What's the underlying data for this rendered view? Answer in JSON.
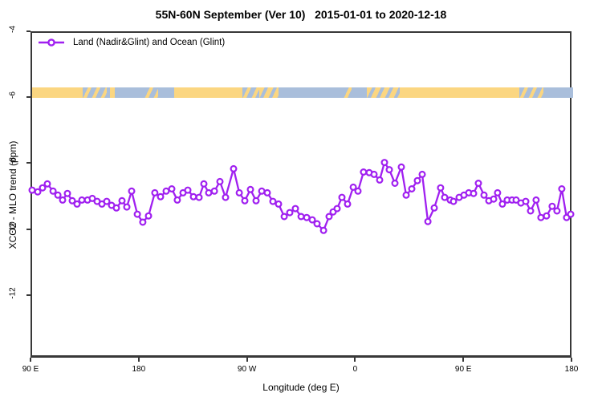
{
  "chart_data": {
    "type": "line",
    "title": "55N-60N September (Ver 10)   2015-01-01 to 2020-12-18",
    "xlabel": "Longitude (deg E)",
    "ylabel": "XCO2 - MLO trend (ppm)",
    "xlim": [
      90,
      540
    ],
    "ylim": [
      -13.9,
      -4.0
    ],
    "grid": false,
    "axis_color": "#383838",
    "x_ticks": [
      {
        "pos": 90,
        "label": "90 E"
      },
      {
        "pos": 180,
        "label": "180"
      },
      {
        "pos": 270,
        "label": "90 W"
      },
      {
        "pos": 360,
        "label": "0"
      },
      {
        "pos": 450,
        "label": "90 E"
      },
      {
        "pos": 540,
        "label": "180"
      }
    ],
    "y_ticks": [
      {
        "pos": -4,
        "label": "-4"
      },
      {
        "pos": -6,
        "label": "-6"
      },
      {
        "pos": -8,
        "label": "-8"
      },
      {
        "pos": -10,
        "label": "-10"
      },
      {
        "pos": -12,
        "label": "-12"
      }
    ],
    "legend": {
      "position": "top-left",
      "entries": [
        {
          "label": "Land (Nadir&Glint) and Ocean (Glint)",
          "color": "#A020F0",
          "marker": "open-circle"
        }
      ]
    },
    "map_band": {
      "meaning": "land-ocean strip along 55N-60N",
      "land_color": "#FBD681",
      "ocean_color": "#A9BEDB",
      "ppm_top": -5.66,
      "ppm_bottom": -5.98,
      "segments": [
        [
          0.0,
          0.093,
          "land"
        ],
        [
          0.093,
          0.138,
          "mix"
        ],
        [
          0.138,
          0.144,
          "ocean"
        ],
        [
          0.144,
          0.153,
          "land"
        ],
        [
          0.153,
          0.208,
          "ocean"
        ],
        [
          0.208,
          0.233,
          "mix"
        ],
        [
          0.233,
          0.263,
          "ocean"
        ],
        [
          0.263,
          0.389,
          "land"
        ],
        [
          0.389,
          0.42,
          "mix"
        ],
        [
          0.42,
          0.455,
          "mix_land"
        ],
        [
          0.455,
          0.576,
          "ocean"
        ],
        [
          0.576,
          0.59,
          "mix"
        ],
        [
          0.59,
          0.619,
          "ocean"
        ],
        [
          0.619,
          0.68,
          "mix_land"
        ],
        [
          0.68,
          0.9,
          "land"
        ],
        [
          0.9,
          0.945,
          "mix"
        ],
        [
          0.945,
          1.0,
          "ocean"
        ]
      ]
    },
    "series": [
      {
        "name": "Land (Nadir&Glint) and Ocean (Glint)",
        "color": "#A020F0",
        "marker": "open-circle",
        "points": [
          [
            90.0,
            -8.77
          ],
          [
            94.7,
            -8.82
          ],
          [
            98.7,
            -8.7
          ],
          [
            102.7,
            -8.58
          ],
          [
            107.4,
            -8.8
          ],
          [
            111.4,
            -8.92
          ],
          [
            115.4,
            -9.07
          ],
          [
            119.4,
            -8.87
          ],
          [
            123.4,
            -9.09
          ],
          [
            127.4,
            -9.19
          ],
          [
            131.4,
            -9.07
          ],
          [
            136.1,
            -9.07
          ],
          [
            140.1,
            -9.02
          ],
          [
            144.1,
            -9.11
          ],
          [
            148.1,
            -9.19
          ],
          [
            152.1,
            -9.11
          ],
          [
            156.1,
            -9.23
          ],
          [
            160.1,
            -9.31
          ],
          [
            164.8,
            -9.09
          ],
          [
            168.8,
            -9.28
          ],
          [
            172.8,
            -8.8
          ],
          [
            177.5,
            -9.5
          ],
          [
            182.1,
            -9.74
          ],
          [
            186.8,
            -9.55
          ],
          [
            192.1,
            -8.85
          ],
          [
            196.8,
            -8.97
          ],
          [
            201.5,
            -8.8
          ],
          [
            206.2,
            -8.73
          ],
          [
            210.8,
            -9.07
          ],
          [
            215.5,
            -8.85
          ],
          [
            219.5,
            -8.77
          ],
          [
            224.2,
            -8.97
          ],
          [
            228.9,
            -8.99
          ],
          [
            232.9,
            -8.58
          ],
          [
            236.9,
            -8.85
          ],
          [
            241.6,
            -8.8
          ],
          [
            246.2,
            -8.51
          ],
          [
            250.9,
            -8.99
          ],
          [
            257.6,
            -8.12
          ],
          [
            262.3,
            -8.85
          ],
          [
            266.9,
            -9.09
          ],
          [
            271.6,
            -8.75
          ],
          [
            276.3,
            -9.09
          ],
          [
            281.0,
            -8.8
          ],
          [
            285.6,
            -8.85
          ],
          [
            290.3,
            -9.11
          ],
          [
            295.0,
            -9.19
          ],
          [
            299.7,
            -9.57
          ],
          [
            304.3,
            -9.45
          ],
          [
            309.0,
            -9.33
          ],
          [
            313.7,
            -9.57
          ],
          [
            318.4,
            -9.6
          ],
          [
            323.0,
            -9.67
          ],
          [
            327.0,
            -9.79
          ],
          [
            332.4,
            -9.99
          ],
          [
            337.0,
            -9.57
          ],
          [
            340.4,
            -9.43
          ],
          [
            343.7,
            -9.33
          ],
          [
            347.7,
            -8.99
          ],
          [
            352.4,
            -9.19
          ],
          [
            357.1,
            -8.68
          ],
          [
            361.1,
            -8.8
          ],
          [
            365.7,
            -8.22
          ],
          [
            370.4,
            -8.24
          ],
          [
            374.4,
            -8.29
          ],
          [
            379.1,
            -8.46
          ],
          [
            383.1,
            -7.93
          ],
          [
            387.1,
            -8.15
          ],
          [
            391.8,
            -8.56
          ],
          [
            397.1,
            -8.07
          ],
          [
            401.1,
            -8.92
          ],
          [
            405.8,
            -8.73
          ],
          [
            410.5,
            -8.48
          ],
          [
            414.5,
            -8.29
          ],
          [
            419.2,
            -9.72
          ],
          [
            424.5,
            -9.31
          ],
          [
            429.8,
            -8.7
          ],
          [
            433.2,
            -8.99
          ],
          [
            437.8,
            -9.07
          ],
          [
            440.5,
            -9.11
          ],
          [
            445.2,
            -8.99
          ],
          [
            449.2,
            -8.92
          ],
          [
            453.2,
            -8.85
          ],
          [
            457.2,
            -8.87
          ],
          [
            461.2,
            -8.56
          ],
          [
            465.9,
            -8.92
          ],
          [
            469.9,
            -9.09
          ],
          [
            473.9,
            -9.04
          ],
          [
            477.2,
            -8.85
          ],
          [
            481.2,
            -9.19
          ],
          [
            485.2,
            -9.07
          ],
          [
            489.2,
            -9.07
          ],
          [
            492.6,
            -9.07
          ],
          [
            496.6,
            -9.16
          ],
          [
            500.6,
            -9.11
          ],
          [
            504.6,
            -9.4
          ],
          [
            509.2,
            -9.07
          ],
          [
            513.2,
            -9.6
          ],
          [
            517.9,
            -9.55
          ],
          [
            522.6,
            -9.26
          ],
          [
            526.6,
            -9.4
          ],
          [
            530.6,
            -8.73
          ],
          [
            534.6,
            -9.6
          ],
          [
            538.0,
            -9.5
          ]
        ]
      }
    ]
  }
}
